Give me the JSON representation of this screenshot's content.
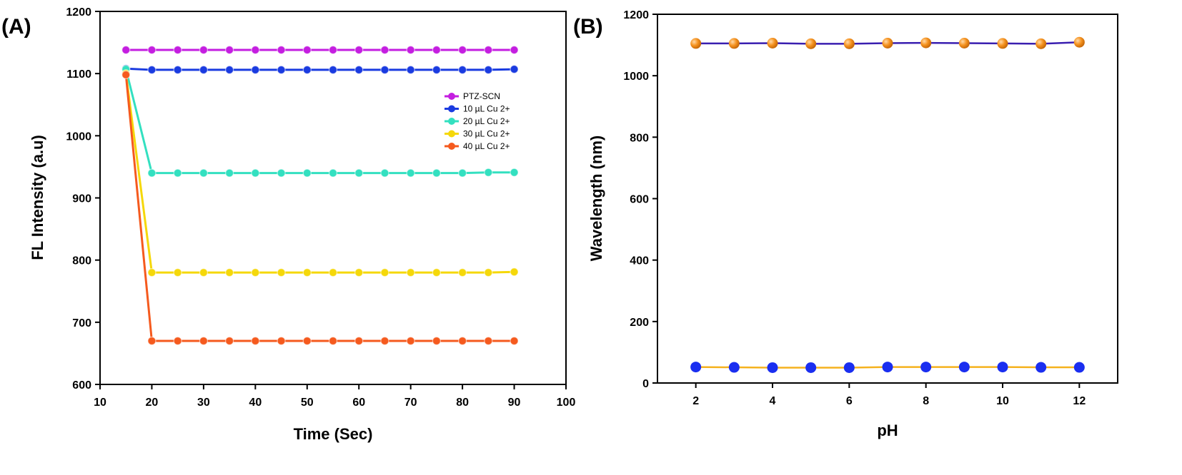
{
  "colors": {
    "ptz_scn": "#c41ee0",
    "cu10": "#1a3be0",
    "cu20": "#33e0c0",
    "cu30": "#f5d80a",
    "cu40": "#f55a1e",
    "line_upper_b": "#3a1fb0",
    "marker_upper_b": "#f5921e",
    "line_lower_b": "#f5b21e",
    "marker_lower_b": "#1a2ef0"
  },
  "chart_data": [
    {
      "type": "line",
      "panel_label": "(A)",
      "xlabel": "Time (Sec)",
      "ylabel": "FL Intensity (a.u)",
      "xlim": [
        10,
        100
      ],
      "ylim": [
        600,
        1200
      ],
      "xticks": [
        10,
        20,
        30,
        40,
        50,
        60,
        70,
        80,
        90,
        100
      ],
      "yticks": [
        600,
        700,
        800,
        900,
        1000,
        1100,
        1200
      ],
      "legend_position": "right",
      "x": [
        15,
        20,
        25,
        30,
        35,
        40,
        45,
        50,
        55,
        60,
        65,
        70,
        75,
        80,
        85,
        90
      ],
      "series": [
        {
          "name": "PTZ-SCN",
          "color_key": "ptz_scn",
          "values": [
            1138,
            1138,
            1138,
            1138,
            1138,
            1138,
            1138,
            1138,
            1138,
            1138,
            1138,
            1138,
            1138,
            1138,
            1138,
            1138
          ]
        },
        {
          "name": "10 µL Cu 2+",
          "color_key": "cu10",
          "values": [
            1108,
            1106,
            1106,
            1106,
            1106,
            1106,
            1106,
            1106,
            1106,
            1106,
            1106,
            1106,
            1106,
            1106,
            1106,
            1107
          ]
        },
        {
          "name": "20 µL  Cu 2+",
          "color_key": "cu20",
          "values": [
            1107,
            940,
            940,
            940,
            940,
            940,
            940,
            940,
            940,
            940,
            940,
            940,
            940,
            940,
            941,
            941
          ]
        },
        {
          "name": "30 µL  Cu 2+",
          "color_key": "cu30",
          "values": [
            1100,
            780,
            780,
            780,
            780,
            780,
            780,
            780,
            780,
            780,
            780,
            780,
            780,
            780,
            780,
            781
          ]
        },
        {
          "name": "40 µL  Cu 2+",
          "color_key": "cu40",
          "values": [
            1098,
            670,
            670,
            670,
            670,
            670,
            670,
            670,
            670,
            670,
            670,
            670,
            670,
            670,
            670,
            670
          ]
        }
      ]
    },
    {
      "type": "line",
      "panel_label": "(B)",
      "xlabel": "pH",
      "ylabel": "Wavelength (nm)",
      "xlim": [
        1,
        13
      ],
      "ylim": [
        0,
        1200
      ],
      "xticks": [
        2,
        4,
        6,
        8,
        10,
        12
      ],
      "yticks": [
        0,
        200,
        400,
        600,
        800,
        1000,
        1200
      ],
      "x": [
        2,
        3,
        4,
        5,
        6,
        7,
        8,
        9,
        10,
        11,
        12
      ],
      "series": [
        {
          "line_color_key": "line_upper_b",
          "marker_color_key": "marker_upper_b",
          "marker_style": "shaded",
          "values": [
            1105,
            1105,
            1106,
            1104,
            1104,
            1106,
            1107,
            1106,
            1105,
            1104,
            1109
          ]
        },
        {
          "line_color_key": "line_lower_b",
          "marker_color_key": "marker_lower_b",
          "marker_style": "flat",
          "values": [
            52,
            51,
            50,
            50,
            50,
            52,
            52,
            52,
            52,
            51,
            51
          ]
        }
      ]
    }
  ]
}
